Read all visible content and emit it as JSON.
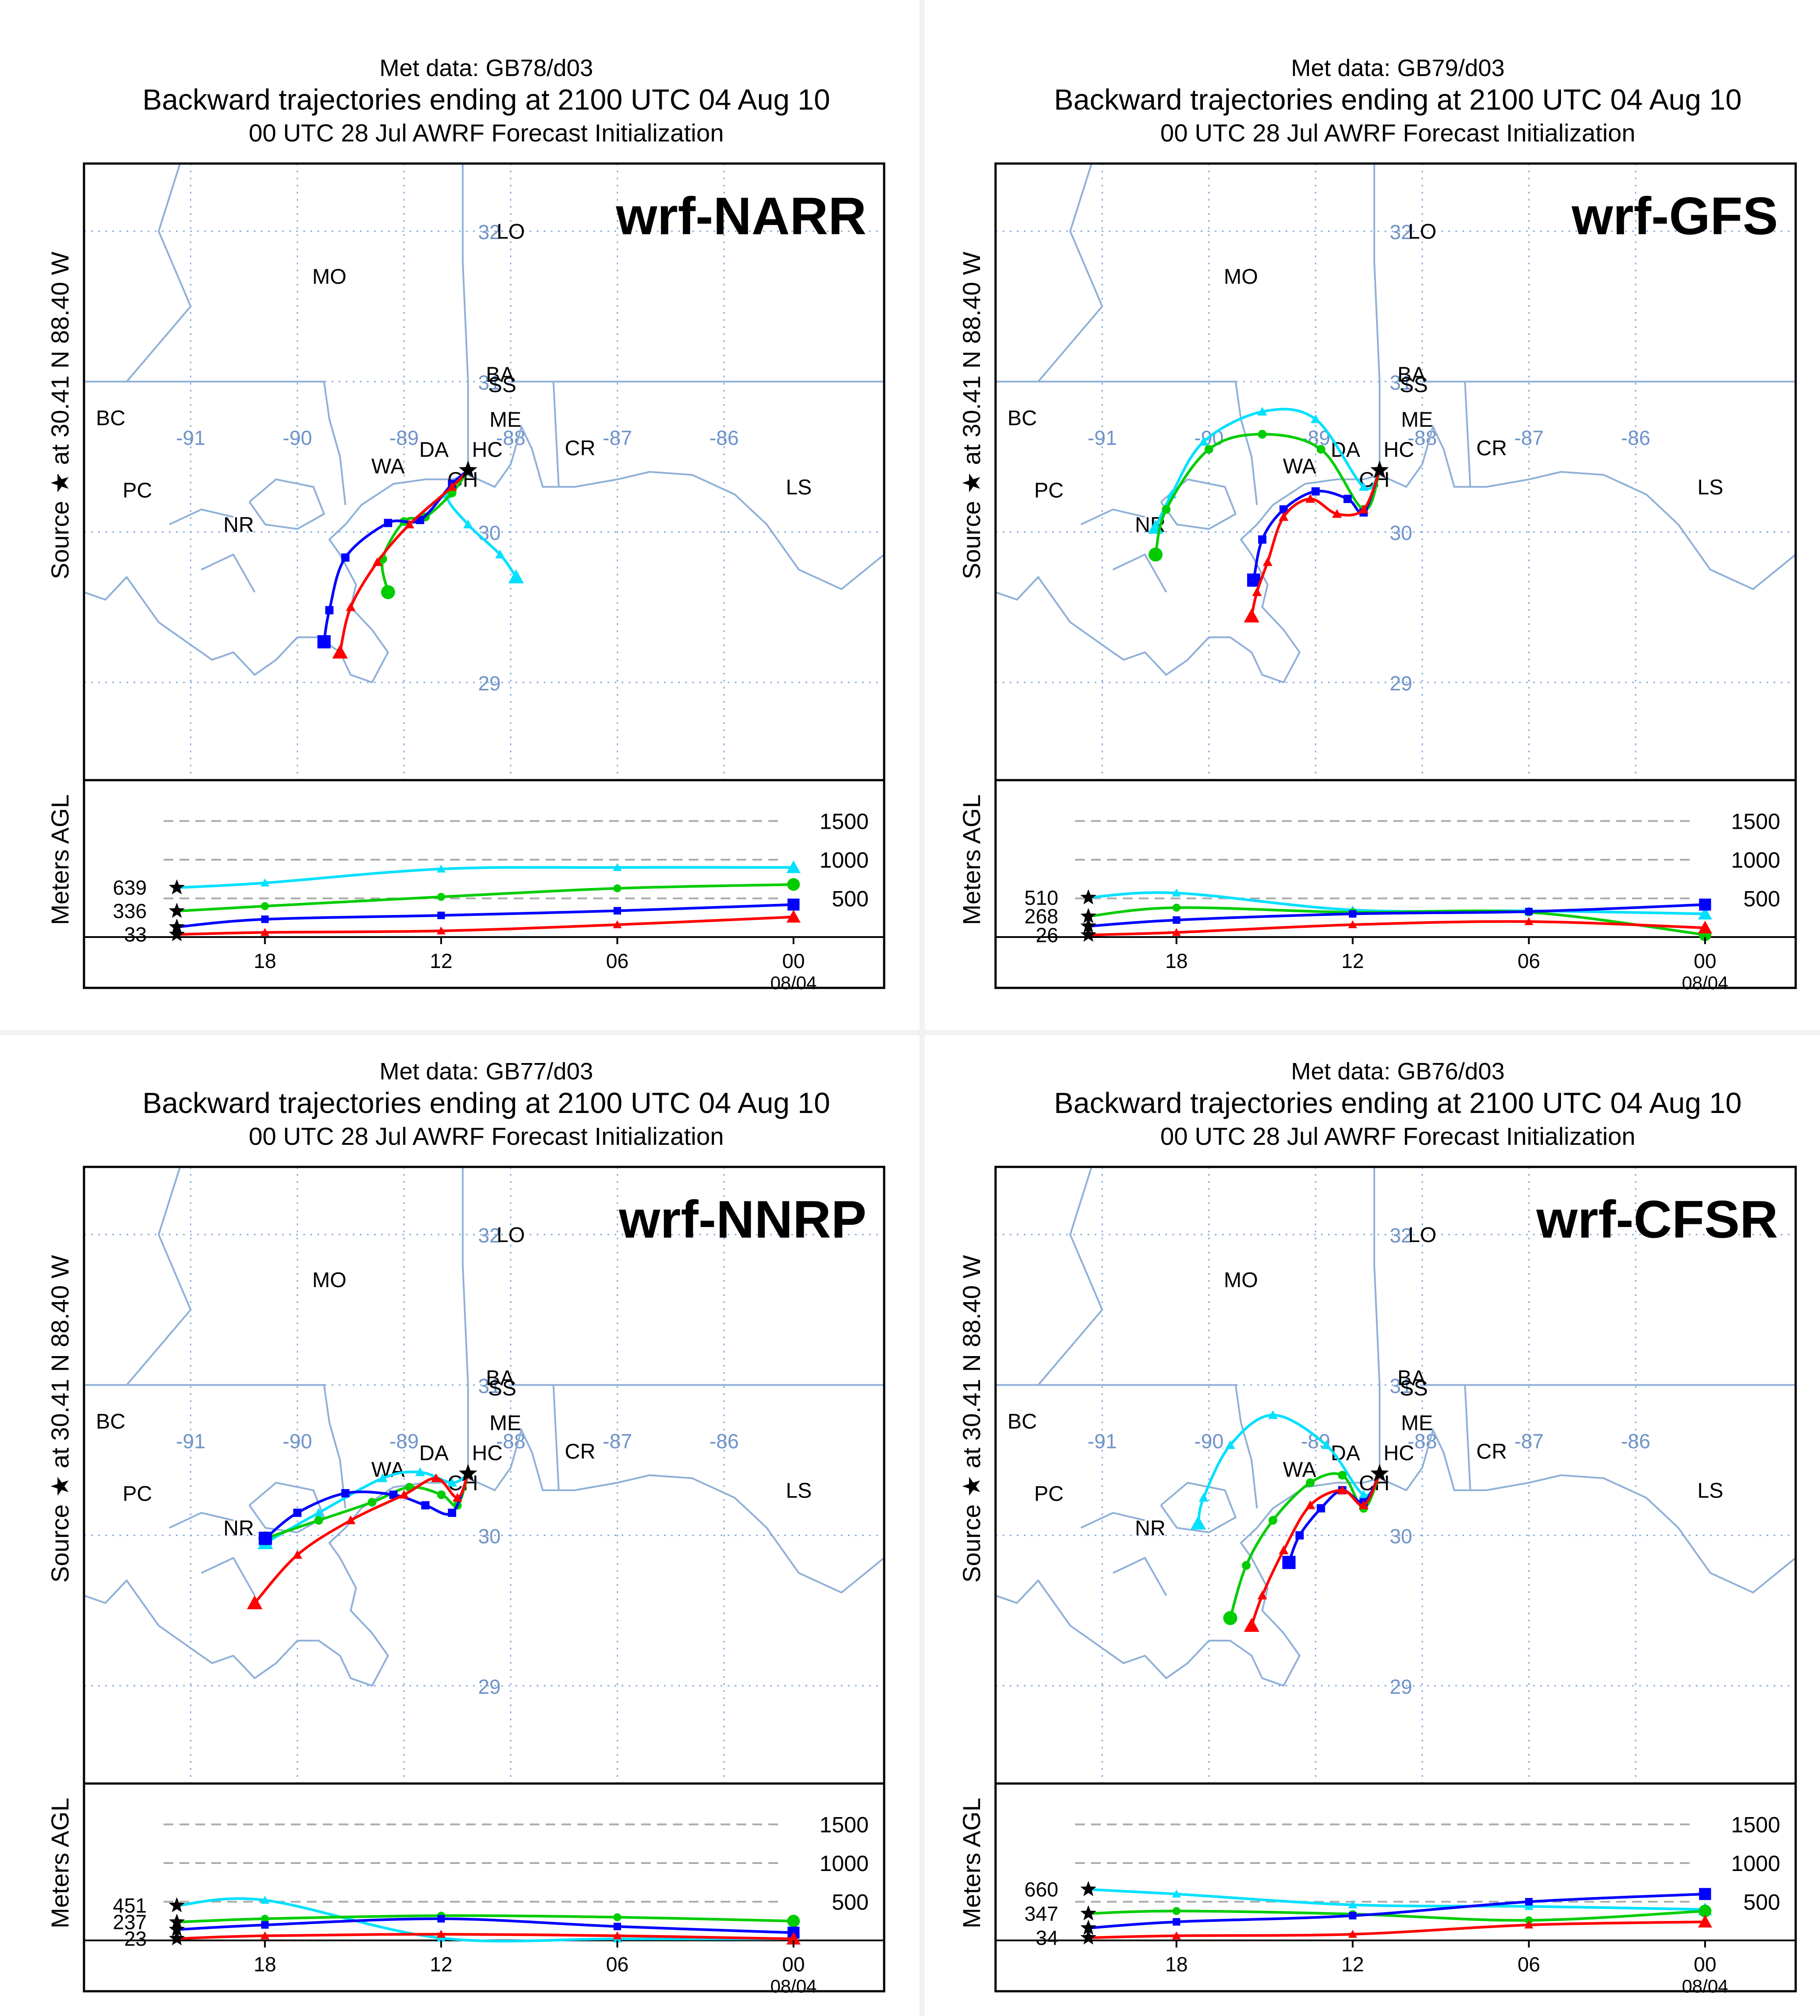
{
  "colors": {
    "red": "#ff0000",
    "blue": "#0000ff",
    "green": "#00cc00",
    "cyan": "#00e0ff",
    "map_lines": "#8fb0d8",
    "grid": "#88aadd",
    "grid_label": "#6f93c8",
    "frame": "#000000",
    "dash": "#aaaaaa"
  },
  "common": {
    "subtitle": "Backward trajectories ending at 2100 UTC 04 Aug 10",
    "init_text": "00 UTC 28 Jul    AWRF  Forecast Initialization",
    "source_label": "Source ★ at 30.41 N  88.40 W",
    "meters_label": "Meters AGL",
    "height_ticks": [
      "1500",
      "1000",
      "500"
    ],
    "time_ticks": [
      "18",
      "12",
      "06",
      "00"
    ],
    "date_label": "08/04",
    "lat_labels": [
      "32",
      "31",
      "30",
      "29"
    ],
    "lon_labels": [
      "-91",
      "-90",
      "-89",
      "-88",
      "-87",
      "-86"
    ],
    "places": [
      "LO",
      "MO",
      "BA",
      "SS",
      "BC",
      "ME",
      "HC",
      "DA",
      "CR",
      "WA",
      "CH",
      "PC",
      "LS",
      "NR"
    ]
  },
  "chart_data": [
    {
      "type": "line",
      "panel": "top-left",
      "met_data_title": "Met data: GB78/d03",
      "model_label": "wrf-NARR",
      "start_heights": [
        "639",
        "336",
        "33"
      ],
      "trajectories": [
        {
          "name": "red",
          "lat": [
            30.41,
            30.3,
            30.05,
            29.8,
            29.5,
            29.2
          ],
          "lon": [
            -88.4,
            -88.55,
            -88.95,
            -89.25,
            -89.5,
            -89.6
          ]
        },
        {
          "name": "blue",
          "lat": [
            30.41,
            30.32,
            30.08,
            30.06,
            29.83,
            29.48,
            29.27
          ],
          "lon": [
            -88.4,
            -88.55,
            -88.85,
            -89.15,
            -89.55,
            -89.7,
            -89.75
          ]
        },
        {
          "name": "green",
          "lat": [
            30.41,
            30.26,
            30.1,
            30.07,
            29.82,
            29.6
          ],
          "lon": [
            -88.4,
            -88.55,
            -88.8,
            -89.0,
            -89.2,
            -89.15
          ]
        },
        {
          "name": "cyan",
          "lat": [
            30.41,
            30.25,
            30.05,
            29.85,
            29.7
          ],
          "lon": [
            -88.4,
            -88.6,
            -88.4,
            -88.1,
            -87.95
          ]
        }
      ],
      "height_series": [
        {
          "name": "red",
          "hours_before_end": [
            21,
            18,
            12,
            6,
            0
          ],
          "meters": [
            33,
            60,
            80,
            160,
            260
          ]
        },
        {
          "name": "blue",
          "hours_before_end": [
            21,
            18,
            12,
            6,
            0
          ],
          "meters": [
            130,
            230,
            280,
            340,
            420
          ]
        },
        {
          "name": "green",
          "hours_before_end": [
            21,
            18,
            12,
            6,
            0
          ],
          "meters": [
            336,
            400,
            520,
            630,
            680
          ]
        },
        {
          "name": "cyan",
          "hours_before_end": [
            21,
            18,
            12,
            6,
            0
          ],
          "meters": [
            639,
            700,
            880,
            900,
            900
          ]
        }
      ]
    },
    {
      "type": "line",
      "panel": "top-right",
      "met_data_title": "Met data: GB79/d03",
      "model_label": "wrf-GFS",
      "start_heights": [
        "510",
        "268",
        "26"
      ],
      "trajectories": [
        {
          "name": "red",
          "lat": [
            30.41,
            30.15,
            30.12,
            30.22,
            30.1,
            29.8,
            29.6,
            29.44
          ],
          "lon": [
            -88.4,
            -88.55,
            -88.8,
            -89.05,
            -89.3,
            -89.45,
            -89.55,
            -89.6
          ]
        },
        {
          "name": "blue",
          "lat": [
            30.41,
            30.13,
            30.22,
            30.27,
            30.15,
            29.95,
            29.68
          ],
          "lon": [
            -88.4,
            -88.55,
            -88.7,
            -89.0,
            -89.3,
            -89.5,
            -89.58
          ]
        },
        {
          "name": "green",
          "lat": [
            30.41,
            30.15,
            30.55,
            30.65,
            30.55,
            30.15,
            29.85
          ],
          "lon": [
            -88.4,
            -88.55,
            -88.95,
            -89.5,
            -90.0,
            -90.4,
            -90.5
          ]
        },
        {
          "name": "cyan",
          "lat": [
            30.41,
            30.3,
            30.75,
            30.8,
            30.6,
            30.25,
            30.03
          ],
          "lon": [
            -88.4,
            -88.55,
            -89.0,
            -89.5,
            -90.05,
            -90.35,
            -90.5
          ]
        }
      ],
      "height_series": [
        {
          "name": "red",
          "hours_before_end": [
            21,
            18,
            12,
            6,
            0
          ],
          "meters": [
            26,
            60,
            160,
            200,
            120
          ]
        },
        {
          "name": "blue",
          "hours_before_end": [
            21,
            18,
            12,
            6,
            0
          ],
          "meters": [
            140,
            220,
            300,
            330,
            420
          ]
        },
        {
          "name": "green",
          "hours_before_end": [
            21,
            18,
            12,
            6,
            0
          ],
          "meters": [
            268,
            380,
            320,
            320,
            30
          ]
        },
        {
          "name": "cyan",
          "hours_before_end": [
            21,
            18,
            12,
            6,
            0
          ],
          "meters": [
            510,
            570,
            350,
            340,
            300
          ]
        }
      ]
    },
    {
      "type": "line",
      "panel": "bottom-left",
      "met_data_title": "Met data: GB77/d03",
      "model_label": "wrf-NNRP",
      "start_heights": [
        "451",
        "237",
        "23"
      ],
      "trajectories": [
        {
          "name": "red",
          "lat": [
            30.41,
            30.25,
            30.38,
            30.27,
            30.1,
            29.87,
            29.55
          ],
          "lon": [
            -88.4,
            -88.5,
            -88.7,
            -89.0,
            -89.5,
            -90.0,
            -90.4
          ]
        },
        {
          "name": "blue",
          "lat": [
            30.41,
            30.15,
            30.2,
            30.27,
            30.28,
            30.15,
            29.98
          ],
          "lon": [
            -88.4,
            -88.55,
            -88.8,
            -89.1,
            -89.55,
            -90.0,
            -90.3
          ]
        },
        {
          "name": "green",
          "lat": [
            30.41,
            30.2,
            30.27,
            30.32,
            30.22,
            30.1,
            29.98
          ],
          "lon": [
            -88.4,
            -88.5,
            -88.65,
            -88.95,
            -89.3,
            -89.8,
            -90.3
          ]
        },
        {
          "name": "cyan",
          "lat": [
            30.41,
            30.35,
            30.42,
            30.38,
            30.15,
            29.95
          ],
          "lon": [
            -88.4,
            -88.55,
            -88.85,
            -89.2,
            -89.8,
            -90.3
          ]
        }
      ],
      "height_series": [
        {
          "name": "red",
          "hours_before_end": [
            21,
            18,
            12,
            6,
            0
          ],
          "meters": [
            23,
            60,
            80,
            60,
            20
          ]
        },
        {
          "name": "blue",
          "hours_before_end": [
            21,
            18,
            12,
            6,
            0
          ],
          "meters": [
            140,
            200,
            280,
            180,
            100
          ]
        },
        {
          "name": "green",
          "hours_before_end": [
            21,
            18,
            12,
            6,
            0
          ],
          "meters": [
            237,
            280,
            320,
            300,
            250
          ]
        },
        {
          "name": "cyan",
          "hours_before_end": [
            21,
            18,
            12,
            6,
            0
          ],
          "meters": [
            451,
            520,
            30,
            20,
            20
          ]
        }
      ]
    },
    {
      "type": "line",
      "panel": "bottom-right",
      "met_data_title": "Met data: GB76/d03",
      "model_label": "wrf-CFSR",
      "start_heights": [
        "660",
        "347",
        "34"
      ],
      "trajectories": [
        {
          "name": "red",
          "lat": [
            30.41,
            30.2,
            30.3,
            30.2,
            29.9,
            29.6,
            29.4
          ],
          "lon": [
            -88.4,
            -88.55,
            -88.75,
            -89.05,
            -89.3,
            -89.5,
            -89.6
          ]
        },
        {
          "name": "blue",
          "lat": [
            30.41,
            30.22,
            30.3,
            30.18,
            30.0,
            29.82
          ],
          "lon": [
            -88.4,
            -88.55,
            -88.75,
            -88.95,
            -89.15,
            -89.25
          ]
        },
        {
          "name": "green",
          "lat": [
            30.41,
            30.18,
            30.4,
            30.35,
            30.1,
            29.8,
            29.45
          ],
          "lon": [
            -88.4,
            -88.55,
            -88.75,
            -89.05,
            -89.4,
            -89.65,
            -89.8
          ]
        },
        {
          "name": "cyan",
          "lat": [
            30.41,
            30.27,
            30.6,
            30.8,
            30.6,
            30.25,
            30.08
          ],
          "lon": [
            -88.4,
            -88.55,
            -88.9,
            -89.4,
            -89.8,
            -90.05,
            -90.1
          ]
        }
      ],
      "height_series": [
        {
          "name": "red",
          "hours_before_end": [
            21,
            18,
            12,
            6,
            0
          ],
          "meters": [
            34,
            60,
            80,
            200,
            240
          ]
        },
        {
          "name": "blue",
          "hours_before_end": [
            21,
            18,
            12,
            6,
            0
          ],
          "meters": [
            160,
            240,
            320,
            500,
            600
          ]
        },
        {
          "name": "green",
          "hours_before_end": [
            21,
            18,
            12,
            6,
            0
          ],
          "meters": [
            347,
            380,
            340,
            260,
            380
          ]
        },
        {
          "name": "cyan",
          "hours_before_end": [
            21,
            18,
            12,
            6,
            0
          ],
          "meters": [
            660,
            600,
            460,
            440,
            400
          ]
        }
      ]
    }
  ]
}
